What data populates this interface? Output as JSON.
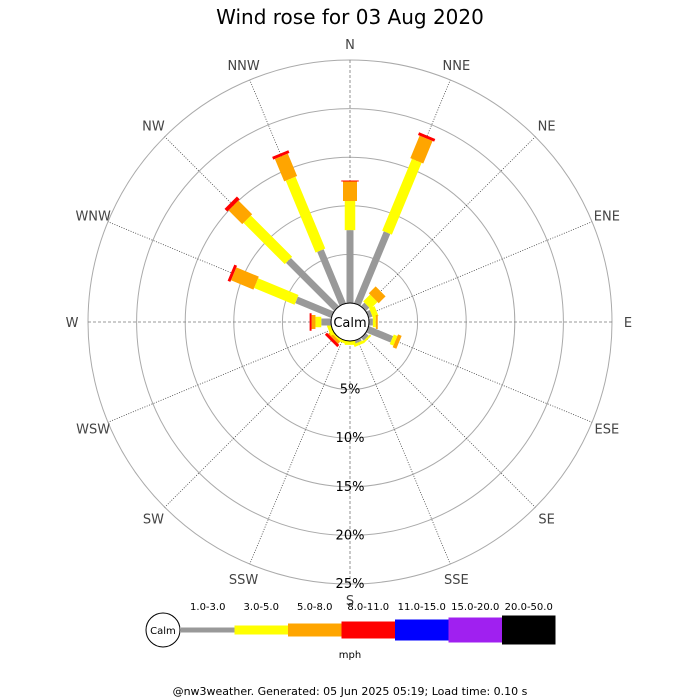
{
  "title": "Wind rose for 03 Aug 2020",
  "footer": "@nw3weather. Generated: 05 Jun 2025 05:19; Load time: 0.10 s",
  "calm_label": "Calm",
  "unit_label": "mph",
  "chart_data": {
    "type": "windrose",
    "title": "Wind rose for 03 Aug 2020",
    "directions": [
      "N",
      "NNE",
      "NE",
      "ENE",
      "E",
      "ESE",
      "SE",
      "SSE",
      "S",
      "SSW",
      "SW",
      "WSW",
      "W",
      "WNW",
      "NW",
      "NNW"
    ],
    "ring_labels": [
      "5%",
      "10%",
      "15%",
      "20%",
      "25%"
    ],
    "radial_max": 25,
    "bins": [
      {
        "label": "1.0-3.0",
        "color": "#999999"
      },
      {
        "label": "3.0-5.0",
        "color": "#ffff00"
      },
      {
        "label": "5.0-8.0",
        "color": "#ffa500"
      },
      {
        "label": "8.0-11.0",
        "color": "#ff0000"
      },
      {
        "label": "11.0-15.0",
        "color": "#0000ff"
      },
      {
        "label": "15.0-20.0",
        "color": "#a020f0"
      },
      {
        "label": "20.0-50.0",
        "color": "#000000"
      }
    ],
    "frequencies": [
      {
        "dir": "N",
        "values": [
          7.5,
          3.0,
          2.0,
          0.1,
          0,
          0,
          0
        ]
      },
      {
        "dir": "NNE",
        "values": [
          8.0,
          8.0,
          2.5,
          0.3,
          0,
          0,
          0
        ]
      },
      {
        "dir": "NE",
        "values": [
          0.5,
          1.0,
          1.0,
          0,
          0,
          0,
          0
        ]
      },
      {
        "dir": "ENE",
        "values": [
          0.4,
          0.6,
          0,
          0,
          0,
          0,
          0
        ]
      },
      {
        "dir": "E",
        "values": [
          0.4,
          0.3,
          0.2,
          0,
          0,
          0,
          0
        ]
      },
      {
        "dir": "ESE",
        "values": [
          2.7,
          0.4,
          0.4,
          0,
          0,
          0,
          0
        ]
      },
      {
        "dir": "SE",
        "values": [
          0.4,
          0.2,
          0,
          0,
          0,
          0,
          0
        ]
      },
      {
        "dir": "SSE",
        "values": [
          0.3,
          0.3,
          0,
          0,
          0,
          0,
          0
        ]
      },
      {
        "dir": "S",
        "values": [
          0,
          0.4,
          0,
          0,
          0,
          0,
          0
        ]
      },
      {
        "dir": "SSW",
        "values": [
          0,
          0.3,
          0,
          0,
          0,
          0,
          0
        ]
      },
      {
        "dir": "SW",
        "values": [
          0,
          0.2,
          0.3,
          0.3,
          0,
          0,
          0
        ]
      },
      {
        "dir": "WSW",
        "values": [
          0,
          0.4,
          0,
          0,
          0,
          0,
          0
        ]
      },
      {
        "dir": "W",
        "values": [
          1.0,
          0.6,
          0.4,
          0.2,
          0,
          0,
          0
        ]
      },
      {
        "dir": "WNW",
        "values": [
          4.0,
          4.5,
          2.5,
          0.3,
          0,
          0,
          0
        ]
      },
      {
        "dir": "NW",
        "values": [
          7.0,
          6.0,
          2.0,
          0.4,
          0,
          0,
          0
        ]
      },
      {
        "dir": "NNW",
        "values": [
          6.0,
          8.0,
          2.5,
          0.3,
          0,
          0,
          0
        ]
      }
    ],
    "grid": true
  }
}
